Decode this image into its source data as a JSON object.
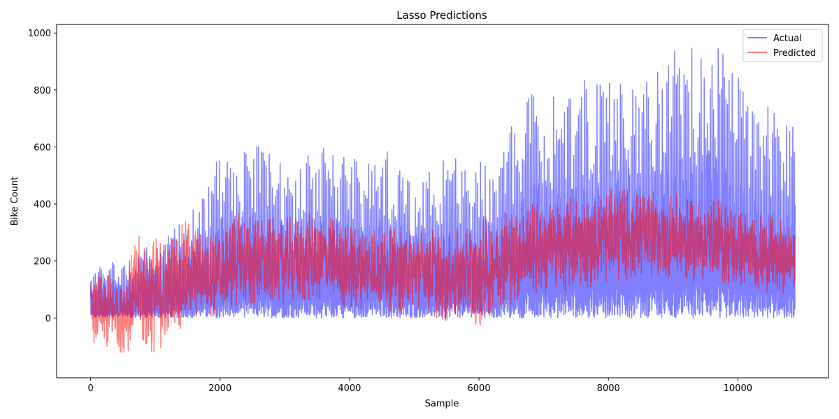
{
  "chart_data": {
    "type": "line",
    "title": "Lasso Predictions",
    "xlabel": "Sample",
    "ylabel": "Bike Count",
    "xlim": [
      -525,
      11400
    ],
    "ylim": [
      -210,
      1030
    ],
    "xticks": [
      0,
      2000,
      4000,
      6000,
      8000,
      10000
    ],
    "yticks": [
      0,
      200,
      400,
      600,
      800,
      1000
    ],
    "grid": false,
    "legend_position": "top-right",
    "series": [
      {
        "name": "Actual",
        "color": "#0000ff",
        "alpha": 0.5,
        "n_points": 10886,
        "envelope_x": [
          0,
          250,
          500,
          750,
          1000,
          1250,
          1500,
          1750,
          2000,
          2250,
          2500,
          2750,
          3000,
          3250,
          3500,
          3750,
          4000,
          4250,
          4500,
          4750,
          5000,
          5250,
          5500,
          5750,
          6000,
          6250,
          6500,
          6750,
          7000,
          7250,
          7500,
          7750,
          8000,
          8250,
          8500,
          8750,
          9000,
          9250,
          9500,
          9750,
          10000,
          10250,
          10500,
          10750,
          10886
        ],
        "envelope_max": [
          150,
          200,
          210,
          240,
          260,
          300,
          380,
          430,
          600,
          570,
          630,
          600,
          560,
          560,
          620,
          580,
          590,
          540,
          620,
          550,
          500,
          520,
          560,
          560,
          560,
          540,
          680,
          780,
          830,
          780,
          820,
          860,
          860,
          880,
          880,
          880,
          940,
          960,
          970,
          950,
          870,
          720,
          760,
          700,
          680
        ],
        "envelope_min": [
          0,
          0,
          0,
          0,
          0,
          0,
          0,
          0,
          0,
          0,
          0,
          0,
          0,
          0,
          0,
          0,
          0,
          0,
          0,
          0,
          0,
          0,
          0,
          0,
          0,
          0,
          0,
          0,
          0,
          0,
          0,
          0,
          0,
          0,
          0,
          0,
          0,
          0,
          0,
          0,
          0,
          0,
          0,
          0,
          0
        ]
      },
      {
        "name": "Predicted",
        "color": "#ff0000",
        "alpha": 0.5,
        "n_points": 10886,
        "envelope_x": [
          0,
          250,
          500,
          750,
          1000,
          1250,
          1500,
          1750,
          2000,
          2250,
          2500,
          2750,
          3000,
          3250,
          3500,
          3750,
          4000,
          4250,
          4500,
          4750,
          5000,
          5250,
          5500,
          5750,
          6000,
          6250,
          6500,
          6750,
          7000,
          7250,
          7500,
          7750,
          8000,
          8250,
          8500,
          8750,
          9000,
          9250,
          9500,
          9750,
          10000,
          10250,
          10500,
          10750,
          10886
        ],
        "envelope_max": [
          150,
          160,
          170,
          300,
          300,
          300,
          360,
          300,
          320,
          380,
          360,
          360,
          360,
          370,
          380,
          360,
          340,
          330,
          330,
          320,
          330,
          330,
          300,
          340,
          360,
          380,
          400,
          410,
          420,
          420,
          440,
          430,
          460,
          470,
          450,
          450,
          450,
          420,
          430,
          420,
          400,
          370,
          360,
          350,
          340
        ],
        "envelope_min": [
          -90,
          -120,
          -130,
          -110,
          -140,
          -80,
          -30,
          0,
          -10,
          20,
          30,
          40,
          40,
          40,
          50,
          40,
          10,
          30,
          20,
          10,
          20,
          0,
          -30,
          -20,
          -60,
          30,
          40,
          60,
          70,
          80,
          90,
          100,
          110,
          120,
          130,
          130,
          130,
          120,
          110,
          110,
          100,
          90,
          80,
          80,
          90
        ]
      }
    ]
  }
}
